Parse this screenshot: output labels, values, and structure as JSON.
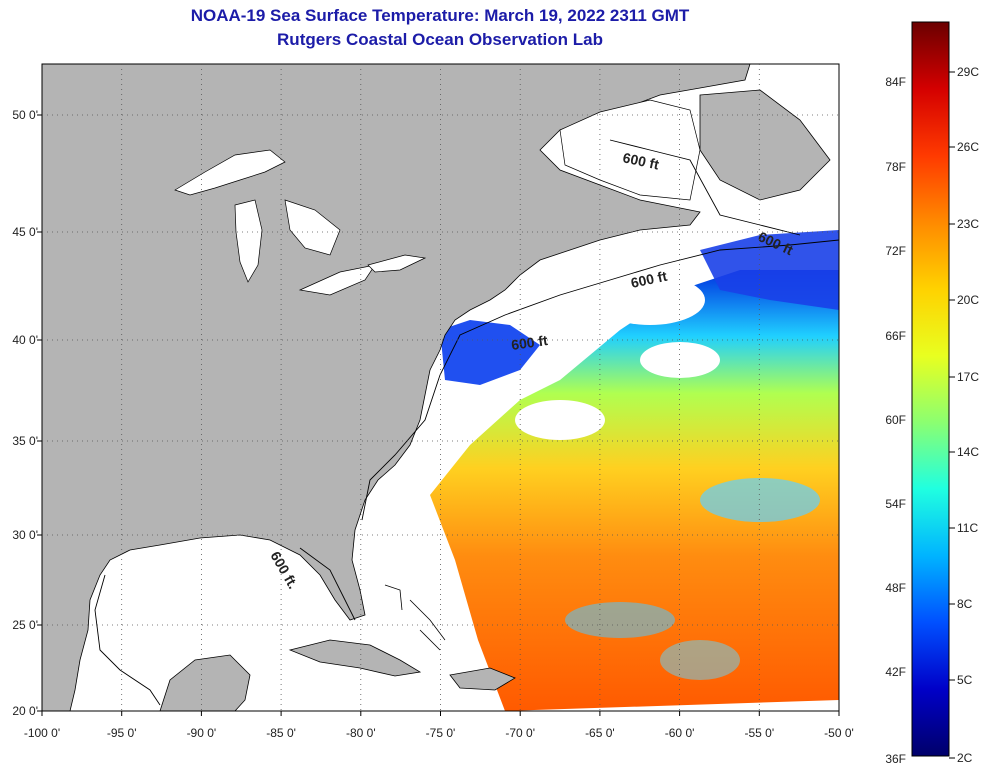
{
  "title": {
    "line1": "NOAA-19 Sea Surface Temperature:  March 19, 2022 2311 GMT",
    "line2": "Rutgers Coastal Ocean Observation Lab"
  },
  "map": {
    "lon_ticks": [
      "-100 0'",
      "-95 0'",
      "-90 0'",
      "-85 0'",
      "-80 0'",
      "-75 0'",
      "-70 0'",
      "-65 0'",
      "-60 0'",
      "-55 0'",
      "-50 0'"
    ],
    "lat_ticks": [
      "50 0'",
      "45 0'",
      "40 0'",
      "35 0'",
      "30 0'",
      "25 0'",
      "20 0'"
    ],
    "contour_labels": [
      "600 ft",
      "600 ft",
      "600 ft",
      "600 ft",
      "600 ft."
    ],
    "colors": {
      "land": "#b4b4b4",
      "no_data": "#ffffff",
      "coast": "#000000"
    }
  },
  "colorbar": {
    "fahrenheit": [
      "84F",
      "78F",
      "72F",
      "66F",
      "60F",
      "54F",
      "48F",
      "42F",
      "36F"
    ],
    "celsius": [
      "29C",
      "26C",
      "23C",
      "20C",
      "17C",
      "14C",
      "11C",
      "8C",
      "5C",
      "2C"
    ],
    "gradient": [
      "#6b0000",
      "#d40000",
      "#ff3a00",
      "#ff8a00",
      "#ffd200",
      "#e8ff20",
      "#8cff70",
      "#20ffe0",
      "#00b4ff",
      "#0050ff",
      "#0000c8",
      "#00006a"
    ]
  }
}
